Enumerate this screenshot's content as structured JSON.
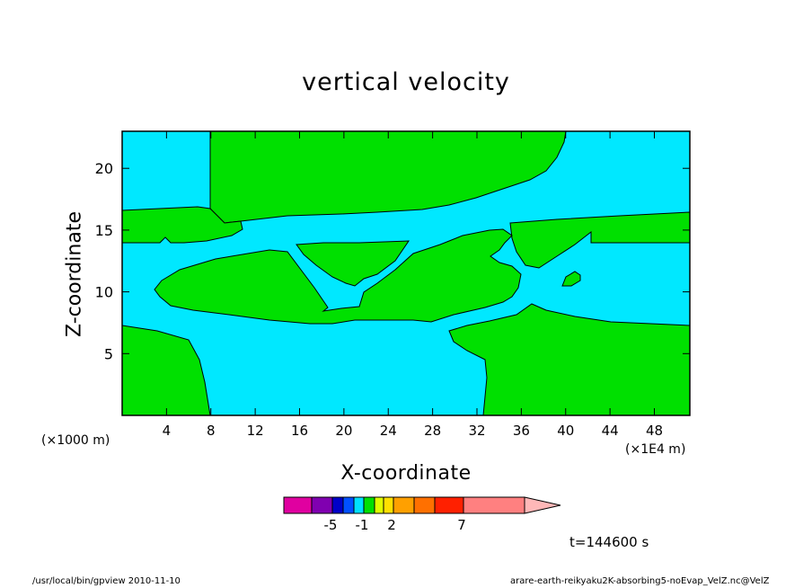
{
  "chart_data": {
    "type": "heatmap",
    "title": "vertical velocity",
    "xlabel": "X-coordinate",
    "ylabel": "Z-coordinate",
    "x_unit": "(×1000 m)",
    "x_unit_secondary": "(×1E4 m)",
    "xlim": [
      0,
      51.2
    ],
    "ylim": [
      0,
      23
    ],
    "x_ticks": [
      4,
      8,
      12,
      16,
      20,
      24,
      28,
      32,
      36,
      40,
      44,
      48
    ],
    "y_ticks": [
      5,
      10,
      15,
      20
    ],
    "colorbar": {
      "colors": [
        "#e000a0",
        "#8000b0",
        "#0000c8",
        "#0050ff",
        "#00e0ff",
        "#00e000",
        "#e0ff00",
        "#ffe000",
        "#ffa000",
        "#ff7000",
        "#ff2000",
        "#ff8080",
        "#ffb8b8"
      ],
      "tick_labels": [
        "-5",
        "-1",
        "2",
        "7"
      ]
    },
    "contour_regions": [
      {
        "color": "cyan",
        "meaning": "negative"
      },
      {
        "color": "green",
        "meaning": "positive"
      }
    ],
    "time_label": "t=144600 s"
  },
  "footer": {
    "left": "/usr/local/bin/gpview  2010-11-10",
    "right": "arare-earth-reikyaku2K-absorbing5-noEvap_VelZ.nc@VelZ"
  },
  "colors": {
    "background": "#00e8ff",
    "positive": "#00e000",
    "outline": "#000000"
  }
}
